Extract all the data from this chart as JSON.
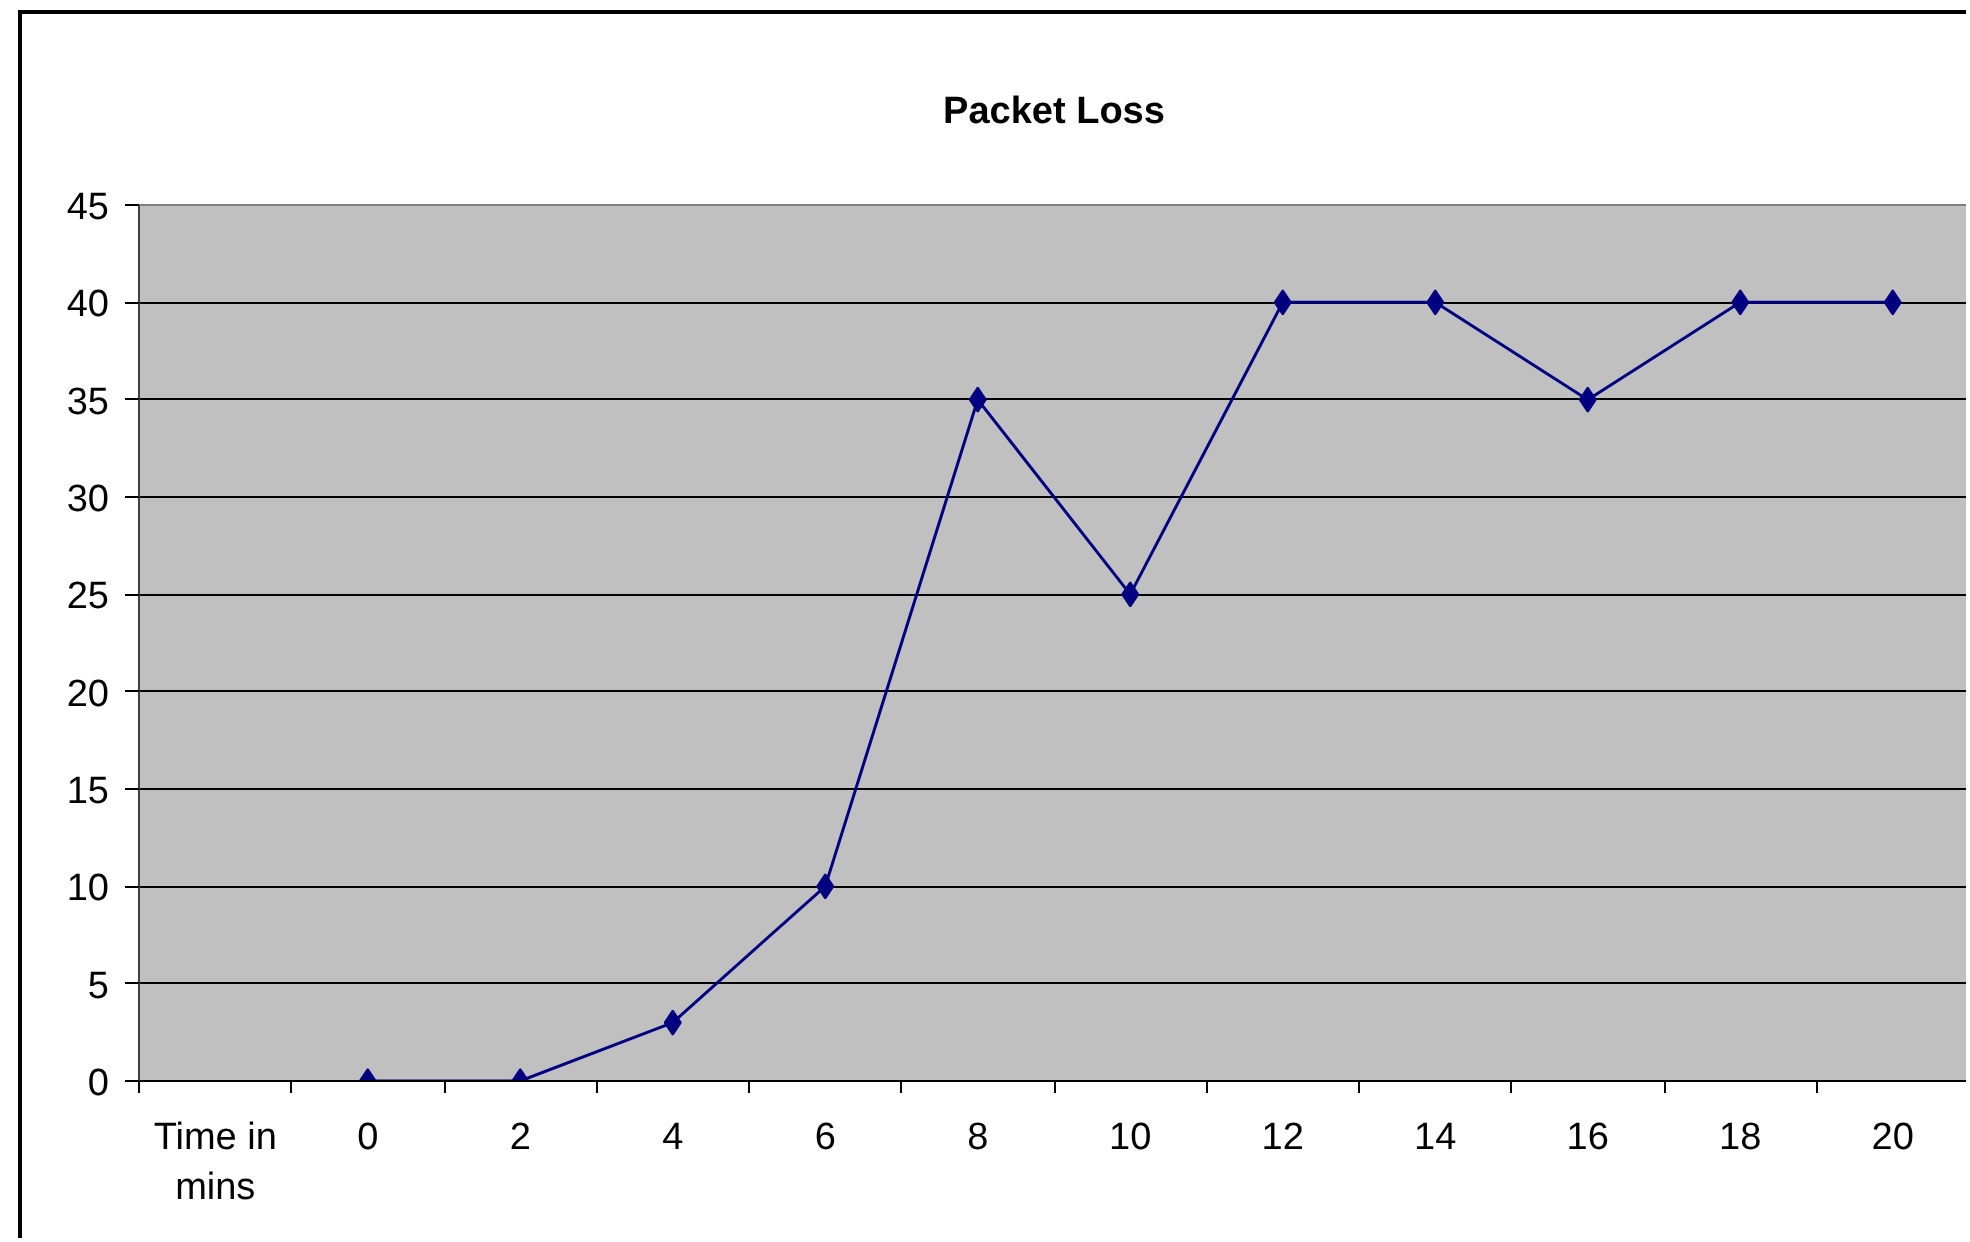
{
  "chart_data": {
    "type": "line",
    "title": "Packet Loss",
    "categories": [
      "Time in mins",
      "0",
      "2",
      "4",
      "6",
      "8",
      "10",
      "12",
      "14",
      "16",
      "18",
      "20"
    ],
    "series": [
      {
        "color": "#000080",
        "values": [
          null,
          0,
          0,
          3,
          10,
          35,
          25,
          40,
          40,
          35,
          40,
          40
        ]
      }
    ],
    "ylim": [
      0,
      45
    ],
    "yticks": [
      0,
      5,
      10,
      15,
      20,
      25,
      30,
      35,
      40,
      45
    ],
    "grid": "y",
    "marker": "diamond",
    "line_style": "solid"
  }
}
